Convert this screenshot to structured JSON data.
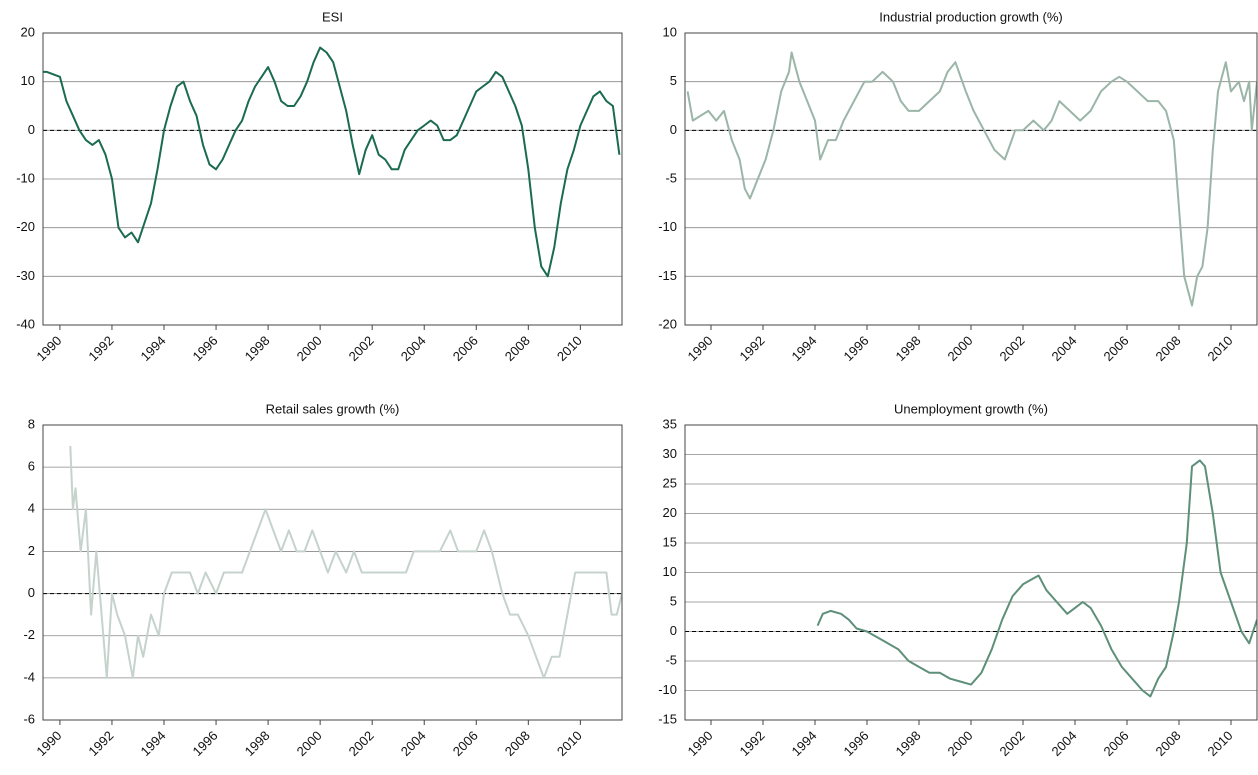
{
  "chart_data": [
    {
      "type": "line",
      "title": "ESI",
      "xlim": [
        1989.35,
        2011.6
      ],
      "ylim": [
        -40,
        20
      ],
      "xticks": [
        1990,
        1992,
        1994,
        1996,
        1998,
        2000,
        2002,
        2004,
        2006,
        2008,
        2010
      ],
      "yticks": [
        -40,
        -30,
        -20,
        -10,
        0,
        10,
        20
      ],
      "grid": true,
      "hline": 0,
      "series": [
        {
          "color": "#1a6b50",
          "x": [
            1989.35,
            1989.5,
            1990,
            1990.25,
            1990.5,
            1990.75,
            1991,
            1991.25,
            1991.5,
            1991.75,
            1992,
            1992.25,
            1992.5,
            1992.75,
            1993,
            1993.25,
            1993.5,
            1993.75,
            1994,
            1994.25,
            1994.5,
            1994.75,
            1995,
            1995.25,
            1995.5,
            1995.75,
            1996,
            1996.25,
            1996.5,
            1996.75,
            1997,
            1997.25,
            1997.5,
            1997.75,
            1998,
            1998.25,
            1998.5,
            1998.75,
            1999,
            1999.25,
            1999.5,
            1999.75,
            2000,
            2000.25,
            2000.5,
            2000.75,
            2001,
            2001.25,
            2001.5,
            2001.75,
            2002,
            2002.25,
            2002.5,
            2002.75,
            2003,
            2003.25,
            2003.5,
            2003.75,
            2004,
            2004.25,
            2004.5,
            2004.75,
            2005,
            2005.25,
            2005.5,
            2005.75,
            2006,
            2006.25,
            2006.5,
            2006.75,
            2007,
            2007.25,
            2007.5,
            2007.75,
            2008,
            2008.25,
            2008.5,
            2008.75,
            2009,
            2009.25,
            2009.5,
            2009.75,
            2010,
            2010.25,
            2010.5,
            2010.75,
            2011,
            2011.25,
            2011.5
          ],
          "values": [
            12,
            12,
            11,
            6,
            3,
            0,
            -2,
            -3,
            -2,
            -5,
            -10,
            -20,
            -22,
            -21,
            -23,
            -19,
            -15,
            -8,
            0,
            5,
            9,
            10,
            6,
            3,
            -3,
            -7,
            -8,
            -6,
            -3,
            0,
            2,
            6,
            9,
            11,
            13,
            10,
            6,
            5,
            5,
            7,
            10,
            14,
            17,
            16,
            14,
            9,
            4,
            -3,
            -9,
            -4,
            -1,
            -5,
            -6,
            -8,
            -8,
            -4,
            -2,
            0,
            1,
            2,
            1,
            -2,
            -2,
            -1,
            2,
            5,
            8,
            9,
            10,
            12,
            11,
            8,
            5,
            1,
            -8,
            -20,
            -28,
            -30,
            -24,
            -15,
            -8,
            -4,
            1,
            4,
            7,
            8,
            6,
            5,
            -5
          ]
        }
      ]
    },
    {
      "type": "line",
      "title": "Industrial production growth (%)",
      "xlim": [
        1989,
        2011
      ],
      "ylim": [
        -20,
        10
      ],
      "xticks": [
        1990,
        1992,
        1994,
        1996,
        1998,
        2000,
        2002,
        2004,
        2006,
        2008,
        2010
      ],
      "yticks": [
        -20,
        -15,
        -10,
        -5,
        0,
        5,
        10
      ],
      "grid": true,
      "hline": 0,
      "series": [
        {
          "color": "#9bb5a8",
          "x": [
            1989.1,
            1989.3,
            1989.6,
            1989.9,
            1990.2,
            1990.5,
            1990.8,
            1991.1,
            1991.3,
            1991.5,
            1991.8,
            1992.1,
            1992.4,
            1992.7,
            1993,
            1993.1,
            1993.4,
            1993.7,
            1994,
            1994.2,
            1994.5,
            1994.8,
            1995.1,
            1995.5,
            1995.9,
            1996.2,
            1996.6,
            1997,
            1997.3,
            1997.6,
            1998,
            1998.4,
            1998.8,
            1999.1,
            1999.4,
            1999.8,
            2000.1,
            2000.5,
            2000.9,
            2001.3,
            2001.7,
            2002,
            2002.4,
            2002.8,
            2003.1,
            2003.4,
            2003.8,
            2004.2,
            2004.6,
            2005,
            2005.4,
            2005.7,
            2006,
            2006.4,
            2006.8,
            2007.2,
            2007.5,
            2007.8,
            2008,
            2008.2,
            2008.4,
            2008.5,
            2008.7,
            2008.9,
            2009.1,
            2009.3,
            2009.5,
            2009.8,
            2010,
            2010.3,
            2010.5,
            2010.7,
            2010.8,
            2011
          ],
          "values": [
            4,
            1,
            1.5,
            2,
            1,
            2,
            -1,
            -3,
            -6,
            -7,
            -5,
            -3,
            0,
            4,
            6,
            8,
            5,
            3,
            1,
            -3,
            -1,
            -1,
            1,
            3,
            5,
            5,
            6,
            5,
            3,
            2,
            2,
            3,
            4,
            6,
            7,
            4,
            2,
            0,
            -2,
            -3,
            0,
            0,
            1,
            0,
            1,
            3,
            2,
            1,
            2,
            4,
            5,
            5.5,
            5,
            4,
            3,
            3,
            2,
            -1,
            -8,
            -15,
            -17,
            -18,
            -15,
            -14,
            -10,
            -2,
            4,
            7,
            4,
            5,
            3,
            5,
            0,
            5
          ]
        }
      ]
    },
    {
      "type": "line",
      "title": "Retail sales growth (%)",
      "xlim": [
        1989.35,
        2011.6
      ],
      "ylim": [
        -6,
        8
      ],
      "xticks": [
        1990,
        1992,
        1994,
        1996,
        1998,
        2000,
        2002,
        2004,
        2006,
        2008,
        2010
      ],
      "yticks": [
        -6,
        -4,
        -2,
        0,
        2,
        4,
        6,
        8
      ],
      "grid": true,
      "hline": 0,
      "series": [
        {
          "color": "#c5d3cc",
          "x": [
            1990.4,
            1990.5,
            1990.6,
            1990.8,
            1991,
            1991.2,
            1991.4,
            1991.6,
            1991.8,
            1992,
            1992.2,
            1992.5,
            1992.8,
            1993,
            1993.2,
            1993.5,
            1993.8,
            1994,
            1994.3,
            1994.6,
            1995,
            1995.3,
            1995.6,
            1996,
            1996.3,
            1996.6,
            1997,
            1997.3,
            1997.6,
            1997.9,
            1998.2,
            1998.5,
            1998.8,
            1999.1,
            1999.4,
            1999.7,
            2000,
            2000.3,
            2000.6,
            2001,
            2001.3,
            2001.6,
            2002,
            2002.3,
            2002.6,
            2003,
            2003.3,
            2003.6,
            2004,
            2004.3,
            2004.6,
            2005,
            2005.3,
            2005.6,
            2006,
            2006.3,
            2006.6,
            2007,
            2007.3,
            2007.6,
            2008,
            2008.3,
            2008.6,
            2008.9,
            2009.2,
            2009.5,
            2009.8,
            2010.1,
            2010.4,
            2010.7,
            2011,
            2011.2,
            2011.4,
            2011.6
          ],
          "values": [
            7,
            4,
            5,
            2,
            4,
            -1,
            2,
            -1,
            -4,
            0,
            -1,
            -2,
            -4,
            -2,
            -3,
            -1,
            -2,
            0,
            1,
            1,
            1,
            0,
            1,
            0,
            1,
            1,
            1,
            2,
            3,
            4,
            3,
            2,
            3,
            2,
            2,
            3,
            2,
            1,
            2,
            1,
            2,
            1,
            1,
            1,
            1,
            1,
            1,
            2,
            2,
            2,
            2,
            3,
            2,
            2,
            2,
            3,
            2,
            0,
            -1,
            -1,
            -2,
            -3,
            -4,
            -3,
            -3,
            -1,
            1,
            1,
            1,
            1,
            1,
            -1,
            -1,
            0
          ]
        }
      ]
    },
    {
      "type": "line",
      "title": "Unemployment growth (%)",
      "xlim": [
        1989,
        2011
      ],
      "ylim": [
        -15,
        35
      ],
      "xticks": [
        1990,
        1992,
        1994,
        1996,
        1998,
        2000,
        2002,
        2004,
        2006,
        2008,
        2010
      ],
      "yticks": [
        -15,
        -10,
        -5,
        0,
        5,
        10,
        15,
        20,
        25,
        30,
        35
      ],
      "grid": true,
      "hline": 0,
      "series": [
        {
          "color": "#5e8f79",
          "x": [
            1994.1,
            1994.3,
            1994.6,
            1995,
            1995.3,
            1995.6,
            1996,
            1996.4,
            1996.8,
            1997.2,
            1997.6,
            1998,
            1998.4,
            1998.8,
            1999.2,
            1999.6,
            2000,
            2000.4,
            2000.8,
            2001.2,
            2001.6,
            2002,
            2002.4,
            2002.6,
            2002.9,
            2003.3,
            2003.7,
            2004,
            2004.3,
            2004.6,
            2005,
            2005.4,
            2005.8,
            2006.2,
            2006.6,
            2006.9,
            2007.2,
            2007.5,
            2007.8,
            2008,
            2008.3,
            2008.5,
            2008.8,
            2009,
            2009.3,
            2009.6,
            2010,
            2010.4,
            2010.7,
            2011
          ],
          "values": [
            1,
            3,
            3.5,
            3,
            2,
            0.5,
            0,
            -1,
            -2,
            -3,
            -5,
            -6,
            -7,
            -7,
            -8,
            -8.5,
            -9,
            -7,
            -3,
            2,
            6,
            8,
            9,
            9.5,
            7,
            5,
            3,
            4,
            5,
            4,
            1,
            -3,
            -6,
            -8,
            -10,
            -11,
            -8,
            -6,
            0,
            5,
            15,
            28,
            29,
            28,
            20,
            10,
            5,
            0,
            -2,
            2
          ]
        }
      ]
    }
  ]
}
